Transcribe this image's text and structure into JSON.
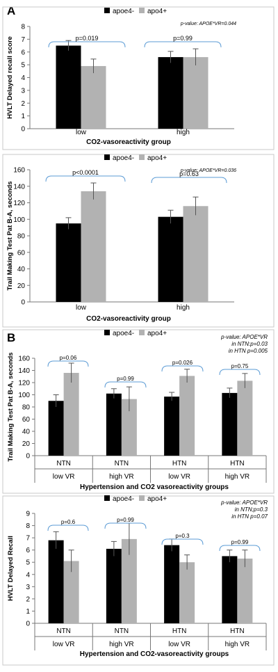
{
  "figure": {
    "panel_a_label": "A",
    "panel_b_label": "B"
  },
  "colors": {
    "apoe_minus": "#000000",
    "apo4_plus": "#b2b2b2",
    "bracket": "#5b9bd5",
    "frame": "#c8c8c8"
  },
  "chart_data": [
    {
      "type": "bar",
      "ylabel": "HVLT Delayed recall score",
      "xlabel": "CO2-vasoreactivity group",
      "categories": [
        "low",
        "high"
      ],
      "ylim": [
        0,
        8
      ],
      "yticks": [
        0,
        1,
        2,
        3,
        4,
        5,
        6,
        7,
        8
      ],
      "legend_position": "top-center",
      "series": [
        {
          "name": "apoe4-",
          "values": [
            6.5,
            5.6
          ],
          "errors": [
            0.4,
            0.45
          ]
        },
        {
          "name": "apo4+",
          "values": [
            4.9,
            5.6
          ],
          "errors": [
            0.55,
            0.65
          ]
        }
      ],
      "group_labels": [
        "p=0.019",
        "p=0.99"
      ],
      "annotation": "p-value: APOE*VR=0.044"
    },
    {
      "type": "bar",
      "ylabel": "Trail Making Test Pat B-A, seconds",
      "xlabel": "CO2-vasoreactivity group",
      "categories": [
        "low",
        "high"
      ],
      "ylim": [
        0,
        160
      ],
      "yticks": [
        0,
        20,
        40,
        60,
        80,
        100,
        120,
        140,
        160
      ],
      "legend_position": "top-center",
      "series": [
        {
          "name": "apoe4-",
          "values": [
            95,
            103
          ],
          "errors": [
            7,
            8
          ]
        },
        {
          "name": "apo4+",
          "values": [
            134,
            116
          ],
          "errors": [
            10,
            11
          ]
        }
      ],
      "group_labels": [
        "p<0.0001",
        "p=0.63"
      ],
      "annotation": "p-value: APOE*VR=0.036"
    },
    {
      "type": "bar",
      "ylabel": "Trail Making Test Pat B-A, seconds",
      "xlabel": "Hypertension and CO2 vasoreactivity groups",
      "categories": [
        "NTN",
        "NTN",
        "HTN",
        "HTN"
      ],
      "subcategories": [
        "low VR",
        "high VR",
        "low VR",
        "high VR"
      ],
      "ylim": [
        0,
        160
      ],
      "yticks": [
        0,
        20,
        40,
        60,
        80,
        100,
        120,
        140,
        160
      ],
      "legend_position": "top-center",
      "series": [
        {
          "name": "apoe4-",
          "values": [
            90,
            102,
            97,
            103
          ],
          "errors": [
            10,
            8,
            7,
            8
          ]
        },
        {
          "name": "apo4+",
          "values": [
            136,
            93,
            131,
            123
          ],
          "errors": [
            16,
            20,
            11,
            12
          ]
        }
      ],
      "group_labels": [
        "p=0.06",
        "p=0.99",
        "p=0.026",
        "p=0.75"
      ],
      "annotation_lines": [
        "p-value: APOE*VR",
        "in NTN:p=0.03",
        "in HTN p=0.005"
      ]
    },
    {
      "type": "bar",
      "ylabel": "HVLT Delayed Recall",
      "xlabel": "Hypertension and CO2-vasoreactivity groups",
      "categories": [
        "NTN",
        "NTN",
        "HTN",
        "HTN"
      ],
      "subcategories": [
        "low VR",
        "high VR",
        "low VR",
        "high VR"
      ],
      "ylim": [
        0,
        9
      ],
      "yticks": [
        0,
        1,
        2,
        3,
        4,
        5,
        6,
        7,
        8,
        9
      ],
      "legend_position": "top-center",
      "series": [
        {
          "name": "apoe4-",
          "values": [
            6.8,
            6.1,
            6.4,
            5.5
          ],
          "errors": [
            0.7,
            0.6,
            0.5,
            0.5
          ]
        },
        {
          "name": "apo4+",
          "values": [
            5.1,
            6.9,
            5.0,
            5.3
          ],
          "errors": [
            0.9,
            1.3,
            0.6,
            0.7
          ]
        }
      ],
      "group_labels": [
        "p=0.6",
        "p=0.99",
        "p=0.3",
        "p=0.99"
      ],
      "annotation_lines": [
        "p-value: APOE*VR",
        "in NTN;p=0.3",
        "in HTN p=0.07"
      ]
    }
  ]
}
